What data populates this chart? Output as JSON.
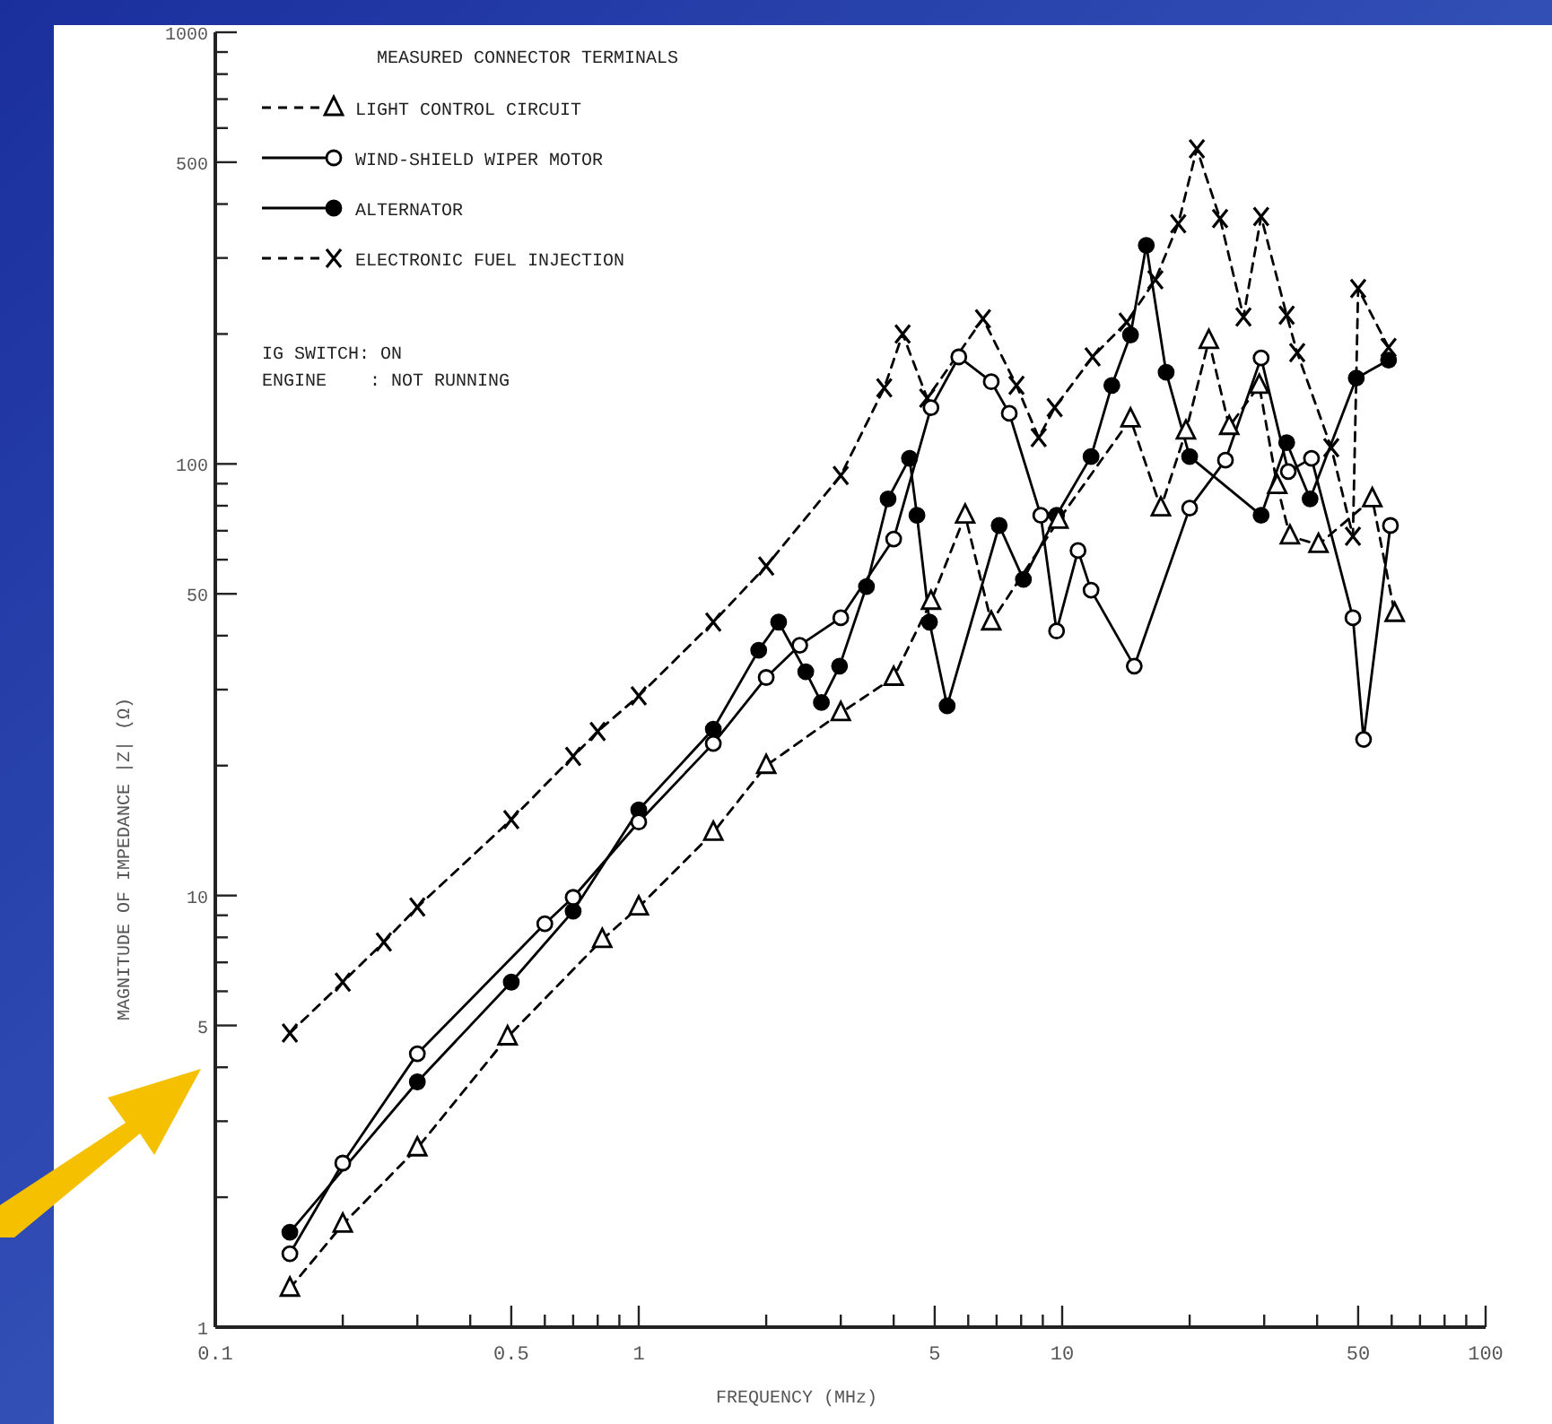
{
  "chart_data": {
    "type": "line",
    "xlabel": "FREQUENCY (MHz)",
    "ylabel": "MAGNITUDE OF IMPEDANCE |Z| (Ω)",
    "legend_title": "MEASURED CONNECTOR TERMINALS",
    "legend": "top left",
    "log": "xy",
    "grid": false,
    "xlim": [
      0.1,
      100
    ],
    "ylim": [
      1,
      1000
    ],
    "xticks": [
      0.1,
      {
        "value": 0.2,
        "label": null
      },
      {
        "value": 0.3,
        "label": null
      },
      {
        "value": 0.4,
        "label": null
      },
      0.5,
      {
        "value": 0.6,
        "label": null
      },
      {
        "value": 0.7,
        "label": null
      },
      {
        "value": 0.8,
        "label": null
      },
      {
        "value": 0.9,
        "label": null
      },
      1,
      {
        "value": 2,
        "label": null
      },
      {
        "value": 3,
        "label": null
      },
      {
        "value": 4,
        "label": null
      },
      5,
      {
        "value": 6,
        "label": null
      },
      {
        "value": 7,
        "label": null
      },
      {
        "value": 8,
        "label": null
      },
      {
        "value": 9,
        "label": null
      },
      10,
      {
        "value": 20,
        "label": null
      },
      {
        "value": 30,
        "label": null
      },
      {
        "value": 40,
        "label": null
      },
      50,
      {
        "value": 60,
        "label": null
      },
      {
        "value": 70,
        "label": null
      },
      {
        "value": 80,
        "label": null
      },
      {
        "value": 90,
        "label": null
      },
      100
    ],
    "yticks": [
      1,
      {
        "value": 2,
        "label": null
      },
      {
        "value": 3,
        "label": null
      },
      {
        "value": 4,
        "label": null
      },
      5,
      {
        "value": 6,
        "label": null
      },
      {
        "value": 7,
        "label": null
      },
      {
        "value": 8,
        "label": null
      },
      {
        "value": 9,
        "label": null
      },
      10,
      {
        "value": 20,
        "label": null
      },
      {
        "value": 30,
        "label": null
      },
      {
        "value": 40,
        "label": null
      },
      50,
      {
        "value": 60,
        "label": null
      },
      {
        "value": 70,
        "label": null
      },
      {
        "value": 80,
        "label": null
      },
      {
        "value": 90,
        "label": null
      },
      100,
      {
        "value": 200,
        "label": null
      },
      {
        "value": 300,
        "label": null
      },
      {
        "value": 400,
        "label": null
      },
      500,
      {
        "value": 600,
        "label": null
      },
      {
        "value": 700,
        "label": null
      },
      {
        "value": 800,
        "label": null
      },
      {
        "value": 900,
        "label": null
      },
      1000
    ],
    "series": [
      {
        "name": "LIGHT CONTROL CIRCUIT",
        "color": "#000000",
        "marker": "triangle",
        "line_style": "dashed",
        "x": [
          0.15,
          0.2,
          0.3,
          0.49,
          0.82,
          1,
          1.5,
          2,
          3,
          4,
          4.9,
          5.9,
          6.8,
          9.8,
          14.5,
          17.1,
          19.6,
          22.2,
          24.8,
          29.2,
          32.2,
          34.5,
          40.3,
          54,
          61
        ],
        "values": [
          1.23,
          1.73,
          2.6,
          4.7,
          7.9,
          9.4,
          14,
          20,
          26.5,
          32,
          48,
          76,
          43,
          74,
          127,
          79,
          119,
          193,
          122,
          152,
          89,
          68,
          65,
          83,
          45
        ]
      },
      {
        "name": "WIND-SHIELD WIPER MOTOR",
        "color": "#000000",
        "marker": "circle",
        "line_style": "solid",
        "x": [
          0.15,
          0.2,
          0.3,
          0.6,
          0.7,
          1,
          1.5,
          2,
          2.4,
          3,
          4,
          4.9,
          5.7,
          6.8,
          7.5,
          8.9,
          9.7,
          10.9,
          11.7,
          14.8,
          20,
          24.3,
          29.5,
          34.2,
          38.8,
          48.6,
          51.5,
          59.6
        ],
        "values": [
          1.48,
          2.4,
          4.3,
          8.6,
          9.9,
          14.8,
          22.5,
          32,
          38,
          44,
          67,
          135,
          177,
          155,
          131,
          76,
          41,
          63,
          51,
          34,
          79,
          102,
          176,
          96,
          103,
          44,
          23,
          72
        ]
      },
      {
        "name": "ALTERNATOR",
        "color": "#000000",
        "marker": "circle",
        "line_style": "solid",
        "x": [
          0.15,
          0.3,
          0.5,
          0.7,
          1,
          1.5,
          1.92,
          2.14,
          2.48,
          2.7,
          2.98,
          3.45,
          3.88,
          4.36,
          4.54,
          4.86,
          5.35,
          7.1,
          8.1,
          9.7,
          11.7,
          13.1,
          14.5,
          15.8,
          17.6,
          20,
          29.5,
          33.9,
          38.5,
          49.5,
          59
        ],
        "values": [
          1.66,
          3.7,
          6.3,
          9.2,
          15.8,
          24.3,
          37,
          43,
          33,
          28,
          34,
          52,
          83,
          103,
          76,
          43,
          27.5,
          72,
          54,
          76,
          104,
          152,
          199,
          321,
          163,
          104,
          76,
          112,
          83,
          158,
          174
        ]
      },
      {
        "name": "ELECTRONIC FUEL INJECTION",
        "color": "#000000",
        "marker": "cross",
        "line_style": "dashed",
        "x": [
          0.15,
          0.2,
          0.25,
          0.3,
          0.5,
          0.7,
          0.8,
          1,
          1.5,
          2,
          3,
          3.8,
          4.2,
          4.8,
          6.5,
          7.8,
          8.8,
          9.6,
          11.8,
          14.2,
          16.6,
          18.8,
          20.8,
          23.6,
          26.8,
          29.5,
          33.9,
          35.9,
          43.2,
          48.6,
          50,
          59
        ],
        "values": [
          4.8,
          6.3,
          7.8,
          9.4,
          15,
          21,
          24,
          29,
          43,
          58,
          94,
          150,
          200,
          142,
          217,
          152,
          115,
          135,
          177,
          213,
          267,
          360,
          537,
          370,
          219,
          374,
          221,
          181,
          109,
          68,
          255,
          186
        ]
      }
    ],
    "annotations": [
      "IG SWITCH: ON",
      "ENGINE    : NOT RUNNING"
    ]
  }
}
